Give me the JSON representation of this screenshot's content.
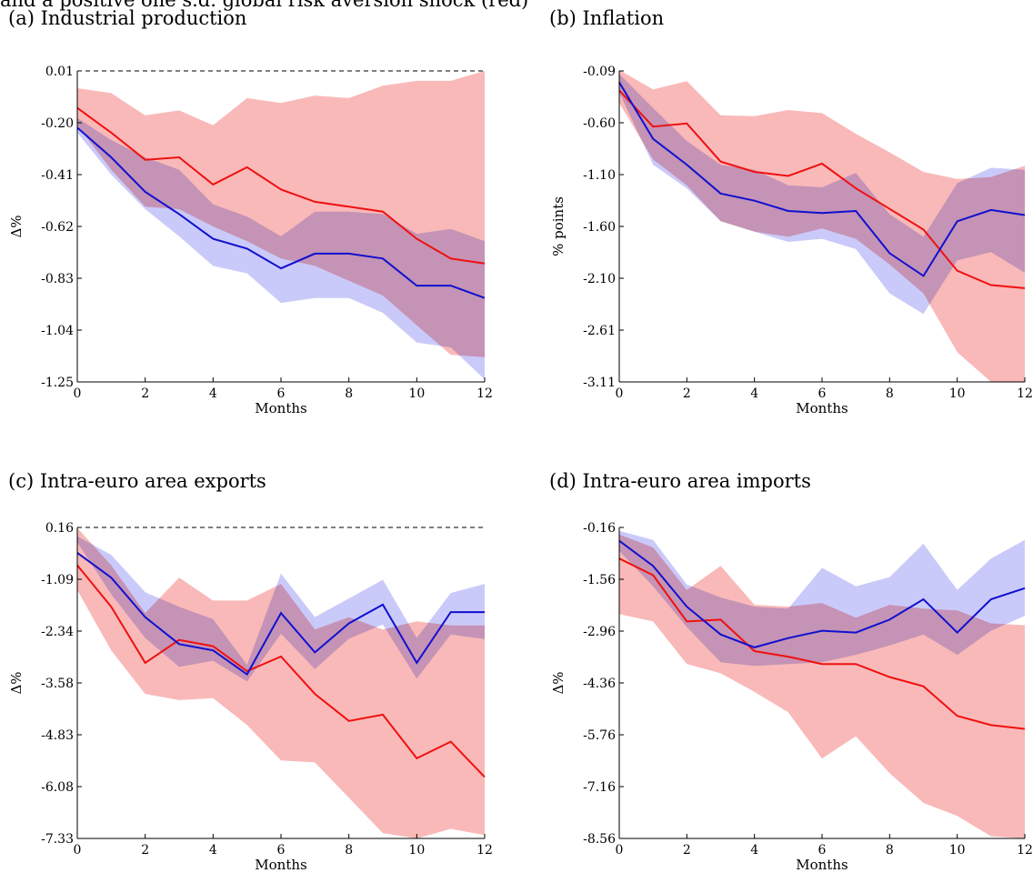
{
  "header_text": "and a positive one s.d. global risk aversion shock (red)",
  "colors": {
    "blue_line": "#1010d0",
    "blue_band": "#b8b8f8",
    "red_line": "#f01010",
    "red_band": "#f8a8a8",
    "overlap_band": "#b48cc8"
  },
  "chart_data": [
    {
      "type": "line",
      "title": "(a) Industrial production",
      "xlabel": "Months",
      "ylabel": "Δ%",
      "x": [
        0,
        1,
        2,
        3,
        4,
        5,
        6,
        7,
        8,
        9,
        10,
        11,
        12
      ],
      "xticks": [
        "0",
        "2",
        "4",
        "6",
        "8",
        "10",
        "12"
      ],
      "yticks": [
        "0.01",
        "-0.20",
        "-0.41",
        "-0.62",
        "-0.83",
        "-1.04",
        "-1.25"
      ],
      "ylim": [
        -1.25,
        0.01
      ],
      "zero_line": 0.01,
      "series": [
        {
          "color": "blue",
          "values": [
            -0.22,
            -0.34,
            -0.48,
            -0.57,
            -0.67,
            -0.71,
            -0.79,
            -0.73,
            -0.73,
            -0.75,
            -0.86,
            -0.86,
            -0.91
          ],
          "lower": [
            -0.24,
            -0.41,
            -0.55,
            -0.66,
            -0.78,
            -0.81,
            -0.93,
            -0.91,
            -0.91,
            -0.97,
            -1.09,
            -1.11,
            -1.24
          ],
          "upper": [
            -0.18,
            -0.27,
            -0.34,
            -0.39,
            -0.53,
            -0.58,
            -0.66,
            -0.56,
            -0.56,
            -0.57,
            -0.65,
            -0.63,
            -0.68
          ]
        },
        {
          "color": "red",
          "values": [
            -0.14,
            -0.24,
            -0.35,
            -0.34,
            -0.45,
            -0.38,
            -0.47,
            -0.52,
            -0.54,
            -0.56,
            -0.67,
            -0.75,
            -0.77
          ],
          "lower": [
            -0.21,
            -0.39,
            -0.54,
            -0.55,
            -0.62,
            -0.68,
            -0.75,
            -0.78,
            -0.84,
            -0.9,
            -1.02,
            -1.14,
            -1.15
          ],
          "upper": [
            -0.06,
            -0.08,
            -0.17,
            -0.15,
            -0.21,
            -0.1,
            -0.12,
            -0.09,
            -0.1,
            -0.05,
            -0.03,
            -0.03,
            0.01
          ]
        }
      ]
    },
    {
      "type": "line",
      "title": "(b) Inflation",
      "xlabel": "Months",
      "ylabel": "% points",
      "x": [
        0,
        1,
        2,
        3,
        4,
        5,
        6,
        7,
        8,
        9,
        10,
        11,
        12
      ],
      "xticks": [
        "0",
        "2",
        "4",
        "6",
        "8",
        "10",
        "12"
      ],
      "yticks": [
        "-0.09",
        "-0.60",
        "-1.10",
        "-1.60",
        "-2.10",
        "-2.61",
        "-3.11"
      ],
      "ylim": [
        -3.11,
        -0.09
      ],
      "series": [
        {
          "color": "blue",
          "values": [
            -0.2,
            -0.75,
            -1.0,
            -1.28,
            -1.35,
            -1.45,
            -1.47,
            -1.45,
            -1.86,
            -2.08,
            -1.55,
            -1.44,
            -1.49
          ],
          "lower": [
            -0.3,
            -1.0,
            -1.23,
            -1.55,
            -1.65,
            -1.75,
            -1.72,
            -1.82,
            -2.25,
            -2.45,
            -1.93,
            -1.85,
            -2.05
          ],
          "upper": [
            -0.12,
            -0.45,
            -0.77,
            -1.0,
            -1.05,
            -1.2,
            -1.22,
            -1.08,
            -1.48,
            -1.7,
            -1.18,
            -1.03,
            -1.05
          ]
        },
        {
          "color": "red",
          "values": [
            -0.28,
            -0.63,
            -0.6,
            -0.97,
            -1.07,
            -1.11,
            -0.99,
            -1.23,
            -1.43,
            -1.63,
            -2.03,
            -2.17,
            -2.2
          ],
          "lower": [
            -0.4,
            -0.95,
            -1.2,
            -1.55,
            -1.65,
            -1.7,
            -1.62,
            -1.72,
            -1.97,
            -2.25,
            -2.82,
            -3.11,
            -3.11
          ],
          "upper": [
            -0.08,
            -0.27,
            -0.19,
            -0.52,
            -0.53,
            -0.47,
            -0.5,
            -0.7,
            -0.88,
            -1.07,
            -1.14,
            -1.12,
            -1.01
          ]
        }
      ]
    },
    {
      "type": "line",
      "title": "(c) Intra-euro area exports",
      "xlabel": "Months",
      "ylabel": "Δ%",
      "x": [
        0,
        1,
        2,
        3,
        4,
        5,
        6,
        7,
        8,
        9,
        10,
        11,
        12
      ],
      "xticks": [
        "0",
        "2",
        "4",
        "6",
        "8",
        "10",
        "12"
      ],
      "yticks": [
        "0.16",
        "-1.09",
        "-2.34",
        "-3.58",
        "-4.83",
        "-6.08",
        "-7.33"
      ],
      "ylim": [
        -7.33,
        0.16
      ],
      "zero_line": 0.16,
      "series": [
        {
          "color": "blue",
          "values": [
            -0.45,
            -1.05,
            -2.0,
            -2.65,
            -2.8,
            -3.38,
            -1.9,
            -2.85,
            -2.15,
            -1.7,
            -3.1,
            -1.88,
            -1.88
          ],
          "lower": [
            -0.2,
            -1.45,
            -2.5,
            -3.2,
            -3.05,
            -3.55,
            -2.4,
            -3.25,
            -2.52,
            -2.18,
            -3.48,
            -2.42,
            -2.53
          ],
          "upper": [
            -0.05,
            -0.5,
            -1.4,
            -1.75,
            -2.05,
            -3.15,
            -0.95,
            -2.0,
            -1.55,
            -1.1,
            -2.5,
            -1.42,
            -1.2
          ]
        },
        {
          "color": "red",
          "values": [
            -0.75,
            -1.75,
            -3.1,
            -2.55,
            -2.7,
            -3.3,
            -2.95,
            -3.85,
            -4.5,
            -4.35,
            -5.4,
            -5.0,
            -5.85
          ],
          "lower": [
            -1.35,
            -2.8,
            -3.85,
            -4.0,
            -3.95,
            -4.6,
            -5.45,
            -5.5,
            -6.35,
            -7.2,
            -7.33,
            -7.1,
            -7.25
          ],
          "upper": [
            0.15,
            -0.75,
            -1.9,
            -1.05,
            -1.6,
            -1.6,
            -1.2,
            -2.3,
            -2.0,
            -2.3,
            -2.1,
            -2.2,
            -2.2
          ]
        }
      ]
    },
    {
      "type": "line",
      "title": "(d) Intra-euro area imports",
      "xlabel": "Months",
      "ylabel": "Δ%",
      "x": [
        0,
        1,
        2,
        3,
        4,
        5,
        6,
        7,
        8,
        9,
        10,
        11,
        12
      ],
      "xticks": [
        "0",
        "2",
        "4",
        "6",
        "8",
        "10",
        "12"
      ],
      "yticks": [
        "-0.16",
        "-1.56",
        "-2.96",
        "-4.36",
        "-5.76",
        "-7.16",
        "-8.56"
      ],
      "ylim": [
        -8.56,
        -0.16
      ],
      "series": [
        {
          "color": "blue",
          "values": [
            -0.52,
            -1.2,
            -2.3,
            -3.05,
            -3.4,
            -3.15,
            -2.95,
            -3.0,
            -2.65,
            -2.1,
            -3.0,
            -2.1,
            -1.8
          ],
          "lower": [
            -0.8,
            -1.75,
            -2.85,
            -3.8,
            -3.9,
            -3.85,
            -3.8,
            -3.6,
            -3.35,
            -3.05,
            -3.6,
            -2.95,
            -2.55
          ],
          "upper": [
            -0.25,
            -0.5,
            -1.7,
            -2.05,
            -2.3,
            -2.35,
            -1.25,
            -1.75,
            -1.5,
            -0.6,
            -1.85,
            -1.0,
            -0.5
          ]
        },
        {
          "color": "red",
          "values": [
            -1.0,
            -1.45,
            -2.7,
            -2.65,
            -3.5,
            -3.65,
            -3.85,
            -3.85,
            -4.2,
            -4.45,
            -5.25,
            -5.5,
            -5.6
          ],
          "lower": [
            -2.5,
            -2.7,
            -3.85,
            -4.1,
            -4.6,
            -5.15,
            -6.4,
            -5.8,
            -6.8,
            -7.6,
            -7.95,
            -8.5,
            -8.56
          ],
          "upper": [
            -0.35,
            -0.7,
            -1.85,
            -1.2,
            -2.25,
            -2.3,
            -2.2,
            -2.6,
            -2.25,
            -2.35,
            -2.4,
            -2.75,
            -2.8
          ]
        }
      ]
    }
  ]
}
